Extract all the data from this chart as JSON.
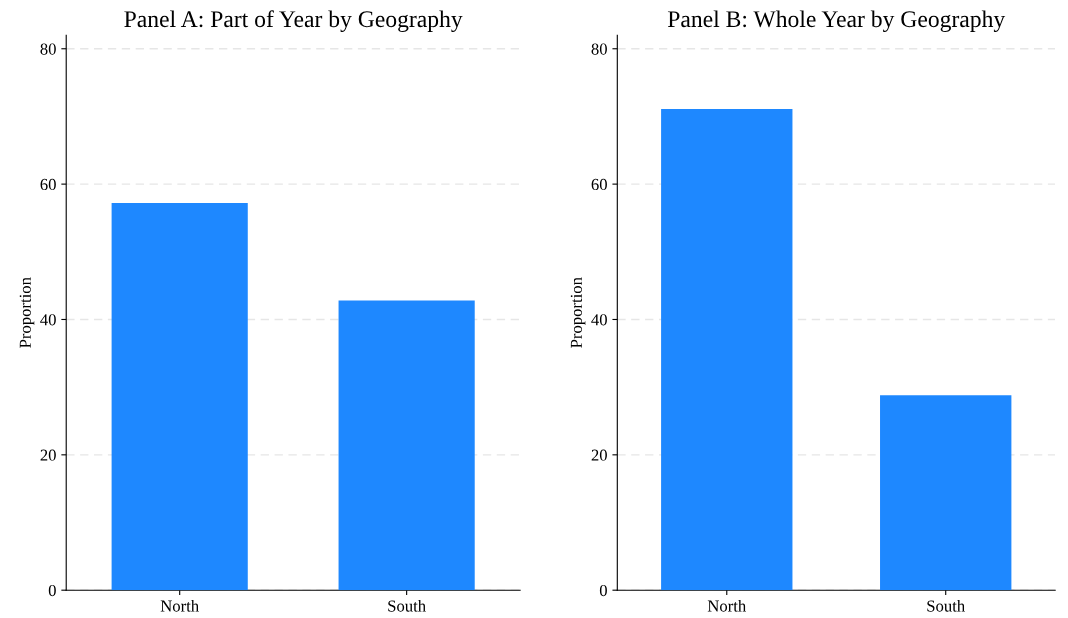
{
  "chart_data": [
    {
      "type": "bar",
      "title": "Panel A: Part of Year by Geography",
      "ylabel": "Proportion",
      "categories": [
        "North",
        "South"
      ],
      "values": [
        57.2,
        42.8
      ],
      "color": "#1e88ff",
      "ylim": [
        0,
        82
      ],
      "yticks": [
        0,
        20,
        40,
        60,
        80
      ],
      "grid": "y",
      "legend": false
    },
    {
      "type": "bar",
      "title": "Panel B: Whole Year by Geography",
      "ylabel": "Proportion",
      "categories": [
        "North",
        "South"
      ],
      "values": [
        71.1,
        28.8
      ],
      "color": "#1e88ff",
      "ylim": [
        0,
        82
      ],
      "yticks": [
        0,
        20,
        40,
        60,
        80
      ],
      "grid": "y",
      "legend": false
    }
  ]
}
